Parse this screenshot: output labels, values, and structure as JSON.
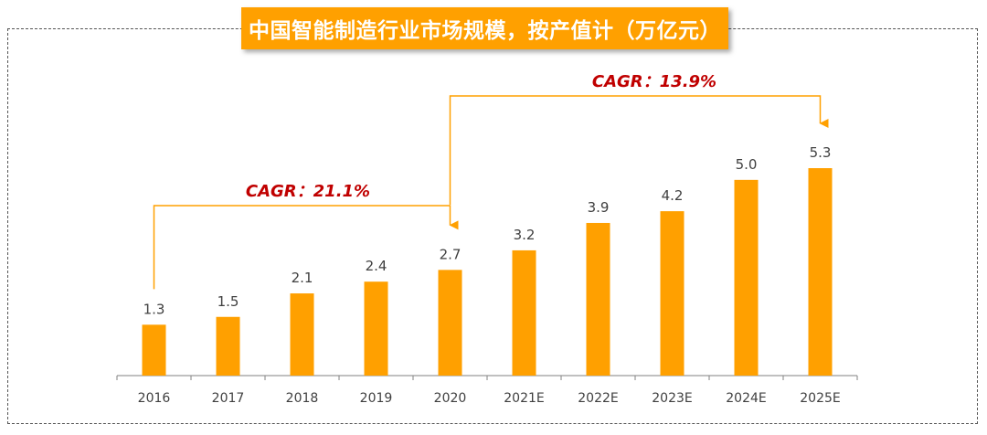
{
  "colors": {
    "bar": "#FFA000",
    "title_bg": "#FFA000",
    "cagr_text": "#C00000",
    "bracket": "#FFA000"
  },
  "chart_data": {
    "type": "bar",
    "title": "中国智能制造行业市场规模，按产值计（万亿元）",
    "categories": [
      "2016",
      "2017",
      "2018",
      "2019",
      "2020",
      "2021E",
      "2022E",
      "2023E",
      "2024E",
      "2025E"
    ],
    "values": [
      1.3,
      1.5,
      2.1,
      2.4,
      2.7,
      3.2,
      3.9,
      4.2,
      5.0,
      5.3
    ],
    "value_labels": [
      "1.3",
      "1.5",
      "2.1",
      "2.4",
      "2.7",
      "3.2",
      "3.9",
      "4.2",
      "5.0",
      "5.3"
    ],
    "ylim": [
      0,
      5.3
    ],
    "grid": false,
    "annotations": [
      {
        "text": "CAGR：21.1%",
        "from": "2016",
        "to": "2020"
      },
      {
        "text": "CAGR：13.9%",
        "from": "2020",
        "to": "2025E"
      }
    ]
  }
}
